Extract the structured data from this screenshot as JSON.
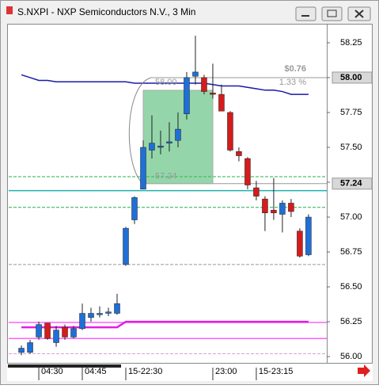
{
  "window": {
    "title": "S.NXPI - NXP Semiconductors N.V., 3 Min"
  },
  "chart_data": {
    "type": "candlestick",
    "open": [
      56.03,
      56.03,
      56.14,
      56.24,
      56.1,
      56.21,
      56.14,
      56.2,
      56.28,
      56.3,
      56.31,
      56.31,
      56.66,
      56.98,
      57.2,
      57.48,
      57.5,
      57.53,
      57.55,
      57.74,
      58.01,
      58.0,
      57.89,
      57.88,
      57.75,
      57.47,
      57.42,
      57.21,
      57.13,
      57.05,
      57.02,
      57.1,
      56.9,
      56.73
    ],
    "high": [
      56.08,
      56.12,
      56.25,
      56.24,
      56.22,
      56.23,
      56.22,
      56.38,
      56.35,
      56.36,
      56.35,
      56.45,
      56.93,
      57.15,
      57.55,
      57.73,
      57.62,
      57.68,
      57.75,
      58.04,
      58.3,
      58.02,
      58.1,
      57.95,
      57.76,
      57.5,
      57.43,
      57.26,
      57.15,
      57.28,
      57.12,
      57.13,
      56.92,
      57.02
    ],
    "low": [
      56.01,
      56.02,
      56.12,
      56.12,
      56.07,
      56.12,
      56.13,
      56.19,
      56.25,
      56.28,
      56.29,
      56.3,
      56.65,
      56.95,
      57.2,
      57.42,
      57.45,
      57.47,
      57.5,
      57.7,
      57.95,
      57.88,
      57.85,
      57.76,
      57.47,
      57.4,
      57.2,
      57.12,
      56.9,
      56.98,
      56.89,
      57.0,
      56.71,
      56.72
    ],
    "close": [
      56.06,
      56.1,
      56.23,
      56.13,
      56.19,
      56.14,
      56.2,
      56.31,
      56.31,
      56.31,
      56.32,
      56.38,
      56.92,
      57.14,
      57.5,
      57.53,
      57.51,
      57.54,
      57.63,
      58.0,
      58.04,
      57.9,
      57.88,
      57.76,
      57.48,
      57.44,
      57.23,
      57.15,
      57.03,
      57.03,
      57.1,
      57.04,
      56.72,
      57.0
    ],
    "up_color": "#1f6fd6",
    "down_color": "#d41c1c",
    "xlim": [
      -1.55,
      35.1
    ],
    "ylim": [
      55.955,
      58.386
    ],
    "xticks": [
      {
        "value": 2,
        "label": "04:30"
      },
      {
        "value": 7,
        "label": "04:45"
      },
      {
        "value": 12,
        "label": "15-22:30"
      },
      {
        "value": 22,
        "label": "23:00"
      },
      {
        "value": 27,
        "label": "15-23:15"
      }
    ],
    "yticks": [
      58.25,
      {
        "value": 58,
        "label": "58.00"
      },
      57.75,
      {
        "value": 57.5,
        "label": "57.50"
      },
      57.25,
      {
        "value": 57,
        "label": "57.00"
      },
      56.75,
      {
        "value": 56.5,
        "label": "56.50"
      },
      56.25,
      {
        "value": 56,
        "label": "56.00"
      }
    ],
    "indicators": [
      {
        "color": "#1a1aa8",
        "values": [
          58.02,
          58.0,
          57.98,
          57.98,
          57.97,
          57.97,
          57.97,
          57.97,
          57.97,
          57.97,
          57.97,
          57.97,
          57.97,
          57.96,
          57.96,
          57.96,
          57.96,
          57.96,
          57.96,
          57.96,
          57.96,
          57.96,
          57.95,
          57.94,
          57.94,
          57.94,
          57.93,
          57.92,
          57.91,
          57.91,
          57.9,
          57.88,
          57.88,
          57.88
        ]
      },
      {
        "color": "#e020e0",
        "values": [
          56.21,
          56.21,
          56.21,
          56.21,
          56.21,
          56.21,
          56.21,
          56.21,
          56.21,
          56.21,
          56.21,
          56.21,
          56.25,
          56.25,
          56.25,
          56.25,
          56.25,
          56.25,
          56.25,
          56.25,
          56.25,
          56.25,
          56.25,
          56.25,
          56.25,
          56.25,
          56.25,
          56.25,
          56.25,
          56.25,
          56.25,
          56.25,
          56.25,
          56.25
        ]
      }
    ],
    "levels": [
      {
        "value": 57.29,
        "color": "#22b14c",
        "dashed": true
      },
      {
        "value": 57.19,
        "color": "#20b0b0",
        "dashed": false
      },
      {
        "value": 57.07,
        "color": "#22b14c",
        "dashed": true
      },
      {
        "value": 56.66,
        "color": "#999999",
        "dashed": true
      },
      {
        "value": 56.245,
        "color": "#ff60ff",
        "dashed": false
      },
      {
        "value": 56.13,
        "color": "#ff60ff",
        "dashed": false
      },
      {
        "value": 56.02,
        "color": "#d8a0d8",
        "dashed": true
      }
    ],
    "price_markers": [
      {
        "value": 58,
        "label": "58.00"
      },
      {
        "value": 57.24,
        "label": "57.24"
      }
    ],
    "measure": {
      "start": 14,
      "end": 22,
      "from": {
        "value": 57.24,
        "label": "57.24"
      },
      "to": {
        "value": 58,
        "label": "58.00"
      },
      "change": "$0.76",
      "change_pct": "1.33 %"
    }
  }
}
